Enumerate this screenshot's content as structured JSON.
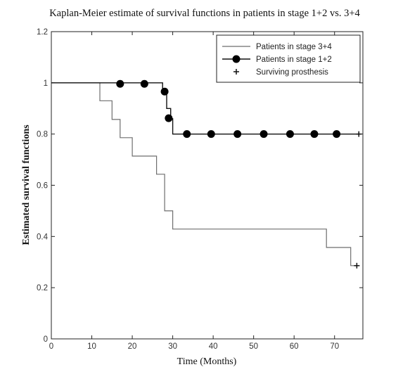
{
  "chart_data": {
    "type": "line",
    "title": "Kaplan-Meier estimate of survival functions in patients in stage 1+2 vs. 3+4",
    "xlabel": "Time (Months)",
    "ylabel": "Estimated survival functions",
    "xlim": [
      0,
      77
    ],
    "ylim": [
      0,
      1.2
    ],
    "x_ticks": [
      "0",
      "10",
      "20",
      "30",
      "40",
      "50",
      "60",
      "70"
    ],
    "y_ticks": [
      "0",
      "0.2",
      "0.4",
      "0.6",
      "0.8",
      "1",
      "1.2"
    ],
    "grid": false,
    "legend_position": "top-right",
    "series": [
      {
        "name": "Patients in stage 3+4",
        "style": "step-line",
        "x": [
          0,
          12,
          12,
          15,
          15,
          17,
          17,
          20,
          20,
          26,
          26,
          28,
          28,
          30,
          30,
          68,
          68,
          74,
          74,
          75.5
        ],
        "y": [
          1.0,
          1.0,
          0.93,
          0.93,
          0.857,
          0.857,
          0.786,
          0.786,
          0.714,
          0.714,
          0.643,
          0.643,
          0.5,
          0.5,
          0.429,
          0.429,
          0.357,
          0.357,
          0.286,
          0.286
        ]
      },
      {
        "name": "Patients in stage 1+2",
        "style": "step-line-with-dots",
        "x": [
          0,
          27.5,
          27.5,
          28.5,
          28.5,
          29.5,
          29.5,
          30,
          30,
          76
        ],
        "y": [
          1.0,
          1.0,
          0.966,
          0.966,
          0.9,
          0.9,
          0.86,
          0.86,
          0.8,
          0.8
        ],
        "markers": [
          {
            "x": 17,
            "y": 0.996
          },
          {
            "x": 23,
            "y": 0.996
          },
          {
            "x": 28,
            "y": 0.966
          },
          {
            "x": 29,
            "y": 0.862
          },
          {
            "x": 33.5,
            "y": 0.8
          },
          {
            "x": 39.5,
            "y": 0.8
          },
          {
            "x": 46,
            "y": 0.8
          },
          {
            "x": 52.5,
            "y": 0.8
          },
          {
            "x": 59,
            "y": 0.8
          },
          {
            "x": 65,
            "y": 0.8
          },
          {
            "x": 70.5,
            "y": 0.8
          }
        ]
      },
      {
        "name": "Surviving prosthesis",
        "style": "plus-marker",
        "points": [
          {
            "x": 75.5,
            "y": 0.286
          },
          {
            "x": 76,
            "y": 0.8
          }
        ]
      }
    ],
    "legend": [
      {
        "label": "Patients in stage 3+4",
        "symbol": "line"
      },
      {
        "label": "Patients in stage 1+2",
        "symbol": "line-dot"
      },
      {
        "label": "Surviving prosthesis",
        "symbol": "plus"
      }
    ],
    "colors": {
      "stage34": "#6e6e6e",
      "stage12": "#111111",
      "axis": "#222222"
    }
  }
}
